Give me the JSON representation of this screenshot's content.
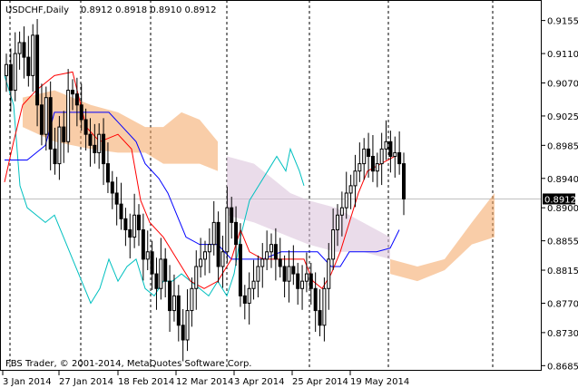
{
  "header": {
    "symbol": "USDCHF,Daily",
    "ohlc": "0.8912 0.8918 0.8910 0.8912"
  },
  "footer": {
    "copyright": "FBS Trader, © 2001-2014, MetaQuotes Software Corp."
  },
  "chart_data": {
    "type": "candlestick",
    "title": "USDCHF,Daily",
    "current_price": "0.8912",
    "y_axis": {
      "ticks": [
        "0.9155",
        "0.9110",
        "0.9070",
        "0.9025",
        "0.8985",
        "0.8940",
        "0.8900",
        "0.8855",
        "0.8815",
        "0.8770",
        "0.8730",
        "0.8685"
      ],
      "range": [
        0.8678,
        0.9178
      ]
    },
    "x_axis": {
      "ticks": [
        "3 Jan 2014",
        "27 Jan 2014",
        "18 Feb 2014",
        "12 Mar 2014",
        "3 Apr 2014",
        "25 Apr 2014",
        "19 May 2014"
      ]
    },
    "period_separators": [
      "Jan 2014",
      "Feb 2014",
      "Mar 2014",
      "Apr 2014",
      "May 2014",
      "Jun 2014",
      "Jul 2014"
    ],
    "colors": {
      "background": "#ffffff",
      "candle": "#000000",
      "tenkan_sen": "#ff0000",
      "kijun_sen": "#0000ff",
      "chikou_span": "#00c0c0",
      "senkou_span_a": "#f4a460",
      "senkou_span_b": "#d8bfd8",
      "grid": "#c0c0c0"
    },
    "indicator": "Ichimoku Kinko Hyo"
  }
}
